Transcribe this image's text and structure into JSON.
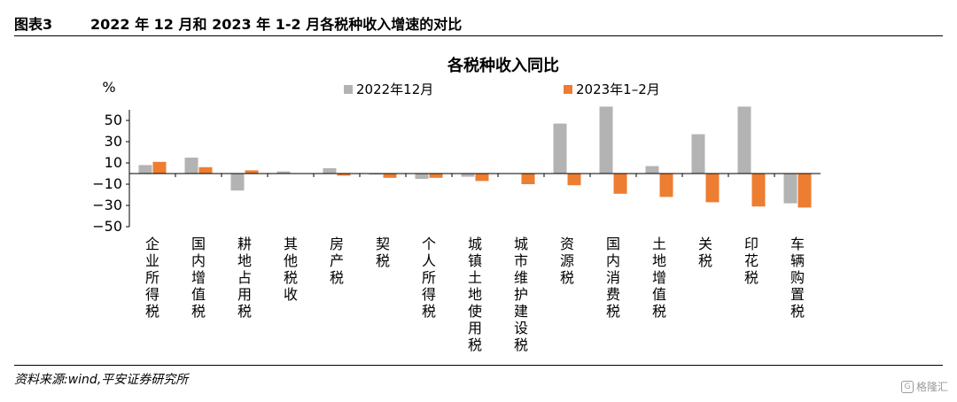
{
  "header": {
    "figure_label": "图表3",
    "figure_title": "2022 年 12 月和 2023 年 1-2 月各税种收入增速的对比"
  },
  "footer": {
    "source": "资料来源:wind,平安证券研究所",
    "watermark": "格隆汇"
  },
  "chart_data": {
    "type": "bar",
    "title": "各税种收入同比",
    "ylabel": "%",
    "ylim": [
      -50,
      60
    ],
    "yticks": [
      50,
      30,
      10,
      -10,
      -30,
      -50
    ],
    "grid": false,
    "legend_position": "top",
    "categories": [
      "企业所得税",
      "国内增值税",
      "耕地占用税",
      "其他税收",
      "房产税",
      "契税",
      "个人所得税",
      "城镇土地使用税",
      "城市维护建设税",
      "资源税",
      "国内消费税",
      "土地增值税",
      "关税",
      "印花税",
      "车辆购置税"
    ],
    "series": [
      {
        "name": "2022年12月",
        "color": "#b3b3b3",
        "values": [
          8,
          15,
          -16,
          2,
          5,
          -1,
          -5,
          -3,
          0,
          47,
          63,
          7,
          37,
          63,
          -28
        ]
      },
      {
        "name": "2023年1–2月",
        "color": "#ed7d31",
        "values": [
          11,
          6,
          3,
          0,
          -2,
          -4,
          -4,
          -7,
          -10,
          -11,
          -19,
          -22,
          -27,
          -31,
          -32
        ]
      }
    ]
  }
}
